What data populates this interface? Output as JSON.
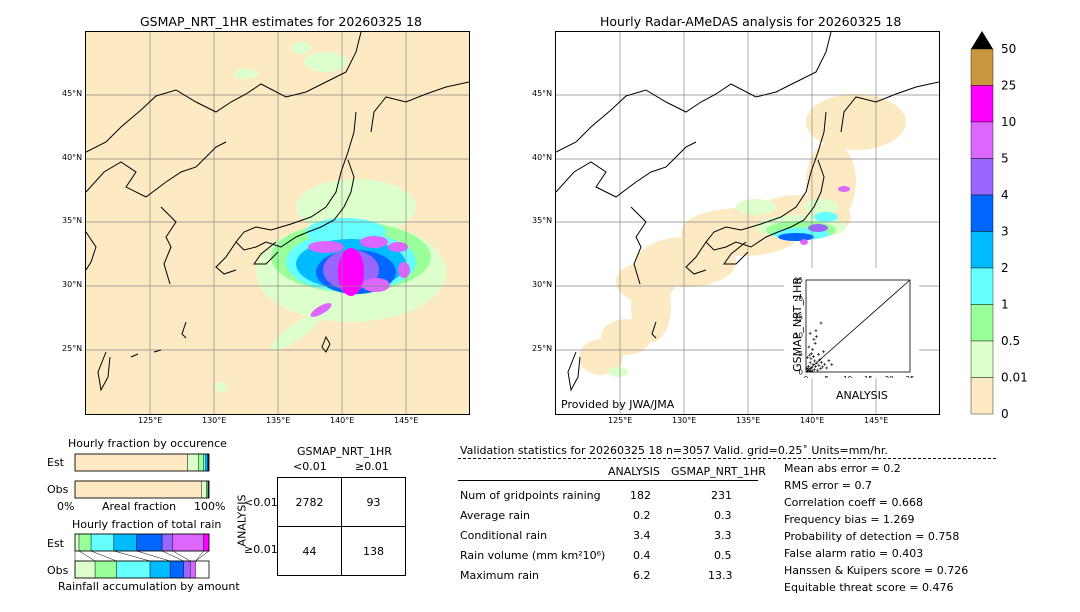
{
  "left_map": {
    "title": "GSMAP_NRT_1HR estimates for 20260325 18",
    "lon_labels": [
      "125°E",
      "130°E",
      "135°E",
      "140°E",
      "145°E"
    ],
    "lat_labels": [
      "45°N",
      "40°N",
      "35°N",
      "30°N",
      "25°N"
    ]
  },
  "right_map": {
    "title": "Hourly Radar-AMeDAS analysis for 20260325 18",
    "lon_labels": [
      "125°E",
      "130°E",
      "135°E",
      "140°E",
      "145°E"
    ],
    "lat_labels": [
      "45°N",
      "40°N",
      "35°N",
      "30°N",
      "25°N"
    ],
    "credit": "Provided by JWA/JMA"
  },
  "colorbar": {
    "labels": [
      "50",
      "25",
      "10",
      "5",
      "4",
      "3",
      "2",
      "1",
      "0.5",
      "0.01",
      "0"
    ],
    "colors": [
      "#c8963c",
      "#ff00ff",
      "#dd66ff",
      "#9966ff",
      "#0066ff",
      "#00bbff",
      "#66ffff",
      "#99ff99",
      "#ddffcc",
      "#fde9c2"
    ]
  },
  "chart_data": [
    {
      "type": "scatter",
      "title": "",
      "xlabel": "ANALYSIS",
      "ylabel": "GSMAP_NRT_1HR",
      "xlim": [
        0,
        25
      ],
      "ylim": [
        0,
        25
      ],
      "x_ticks": [
        "0",
        "5",
        "10",
        "15",
        "20",
        "25"
      ],
      "y_ticks": [
        "0",
        "5",
        "10",
        "15",
        "20",
        "25"
      ],
      "points": [
        [
          0.3,
          0.2
        ],
        [
          0.5,
          0.8
        ],
        [
          0.6,
          1.5
        ],
        [
          0.8,
          0.4
        ],
        [
          1.0,
          2.5
        ],
        [
          1.1,
          0.9
        ],
        [
          1.2,
          3.6
        ],
        [
          1.3,
          5.0
        ],
        [
          1.4,
          1.2
        ],
        [
          1.5,
          0.3
        ],
        [
          1.6,
          6.1
        ],
        [
          1.7,
          2.0
        ],
        [
          1.8,
          4.2
        ],
        [
          2.0,
          0.7
        ],
        [
          2.1,
          3.0
        ],
        [
          2.2,
          7.8
        ],
        [
          2.3,
          1.5
        ],
        [
          2.5,
          9.6
        ],
        [
          2.6,
          2.4
        ],
        [
          2.8,
          0.5
        ],
        [
          3.0,
          4.8
        ],
        [
          3.1,
          1.8
        ],
        [
          3.3,
          3.3
        ],
        [
          3.5,
          0.9
        ],
        [
          3.7,
          2.6
        ],
        [
          4.0,
          1.4
        ],
        [
          4.2,
          5.5
        ],
        [
          4.5,
          2.1
        ],
        [
          0.4,
          3.9
        ],
        [
          0.9,
          4.6
        ],
        [
          1.9,
          8.9
        ],
        [
          2.4,
          11.2
        ],
        [
          3.6,
          13.3
        ],
        [
          1.0,
          10.5
        ],
        [
          0.7,
          6.8
        ],
        [
          5.0,
          1.1
        ],
        [
          5.5,
          3.1
        ],
        [
          6.2,
          2.0
        ],
        [
          0.2,
          1.0
        ],
        [
          1.2,
          0.2
        ]
      ]
    },
    {
      "type": "bar",
      "title": "Hourly fraction by occurence",
      "categories": [
        "Est",
        "Obs"
      ],
      "xlabel_left": "0%",
      "xlabel_mid": "Areal fraction",
      "xlabel_right": "100%",
      "colors": [
        "#fde9c2",
        "#ddffcc",
        "#99ff99",
        "#66ffff",
        "#00bbff",
        "#0066ff",
        "#9966ff"
      ],
      "series": [
        {
          "values": [
            0.84,
            0.945
          ]
        },
        {
          "values": [
            0.08,
            0.035
          ]
        },
        {
          "values": [
            0.04,
            0.012
          ]
        },
        {
          "values": [
            0.015,
            0.004
          ]
        },
        {
          "values": [
            0.012,
            0.002
          ]
        },
        {
          "values": [
            0.008,
            0.001
          ]
        },
        {
          "values": [
            0.005,
            0.001
          ]
        }
      ]
    },
    {
      "type": "bar",
      "title": "Hourly fraction of total rain",
      "categories": [
        "Est",
        "Obs"
      ],
      "xlabel": "Rainfall accumulation by amount",
      "colors": [
        "#fde9c2",
        "#ddffcc",
        "#99ff99",
        "#66ffff",
        "#00bbff",
        "#0066ff",
        "#9966ff",
        "#dd66ff",
        "#ff00ff"
      ],
      "series": [
        {
          "values": [
            0.0,
            0.0
          ]
        },
        {
          "values": [
            0.03,
            0.15
          ]
        },
        {
          "values": [
            0.09,
            0.16
          ]
        },
        {
          "values": [
            0.17,
            0.25
          ]
        },
        {
          "values": [
            0.17,
            0.15
          ]
        },
        {
          "values": [
            0.19,
            0.1
          ]
        },
        {
          "values": [
            0.08,
            0.05
          ]
        },
        {
          "values": [
            0.23,
            0.04
          ]
        },
        {
          "values": [
            0.04,
            0.0
          ]
        }
      ]
    }
  ],
  "contingency": {
    "title": "GSMAP_NRT_1HR",
    "col_labels": [
      "<0.01",
      "≥0.01"
    ],
    "row_title": "ANALYSIS",
    "row_labels": [
      "<0.01",
      "≥0.01"
    ],
    "cells": [
      [
        "2782",
        "93"
      ],
      [
        "44",
        "138"
      ]
    ]
  },
  "validation": {
    "header": "Validation statistics for 20260325 18  n=3057 Valid. grid=0.25˚ Units=mm/hr.",
    "col_analysis": "ANALYSIS",
    "col_gsmap": "GSMAP_NRT_1HR",
    "rows": [
      {
        "label": "Num of gridpoints raining",
        "analysis": "182",
        "gsmap": "231"
      },
      {
        "label": "Average rain",
        "analysis": "0.2",
        "gsmap": "0.3"
      },
      {
        "label": "Conditional rain",
        "analysis": "3.4",
        "gsmap": "3.3"
      },
      {
        "label": "Rain volume (mm km²10⁶)",
        "analysis": "0.4",
        "gsmap": "0.5"
      },
      {
        "label": "Maximum rain",
        "analysis": "6.2",
        "gsmap": "13.3"
      }
    ],
    "scores": [
      "Mean abs error =    0.2",
      "RMS error =    0.7",
      "Correlation coeff =  0.668",
      "Frequency bias =  1.269",
      "Probability of detection =  0.758",
      "False alarm ratio =  0.403",
      "Hanssen & Kuipers score =  0.726",
      "Equitable threat score =  0.476"
    ]
  }
}
